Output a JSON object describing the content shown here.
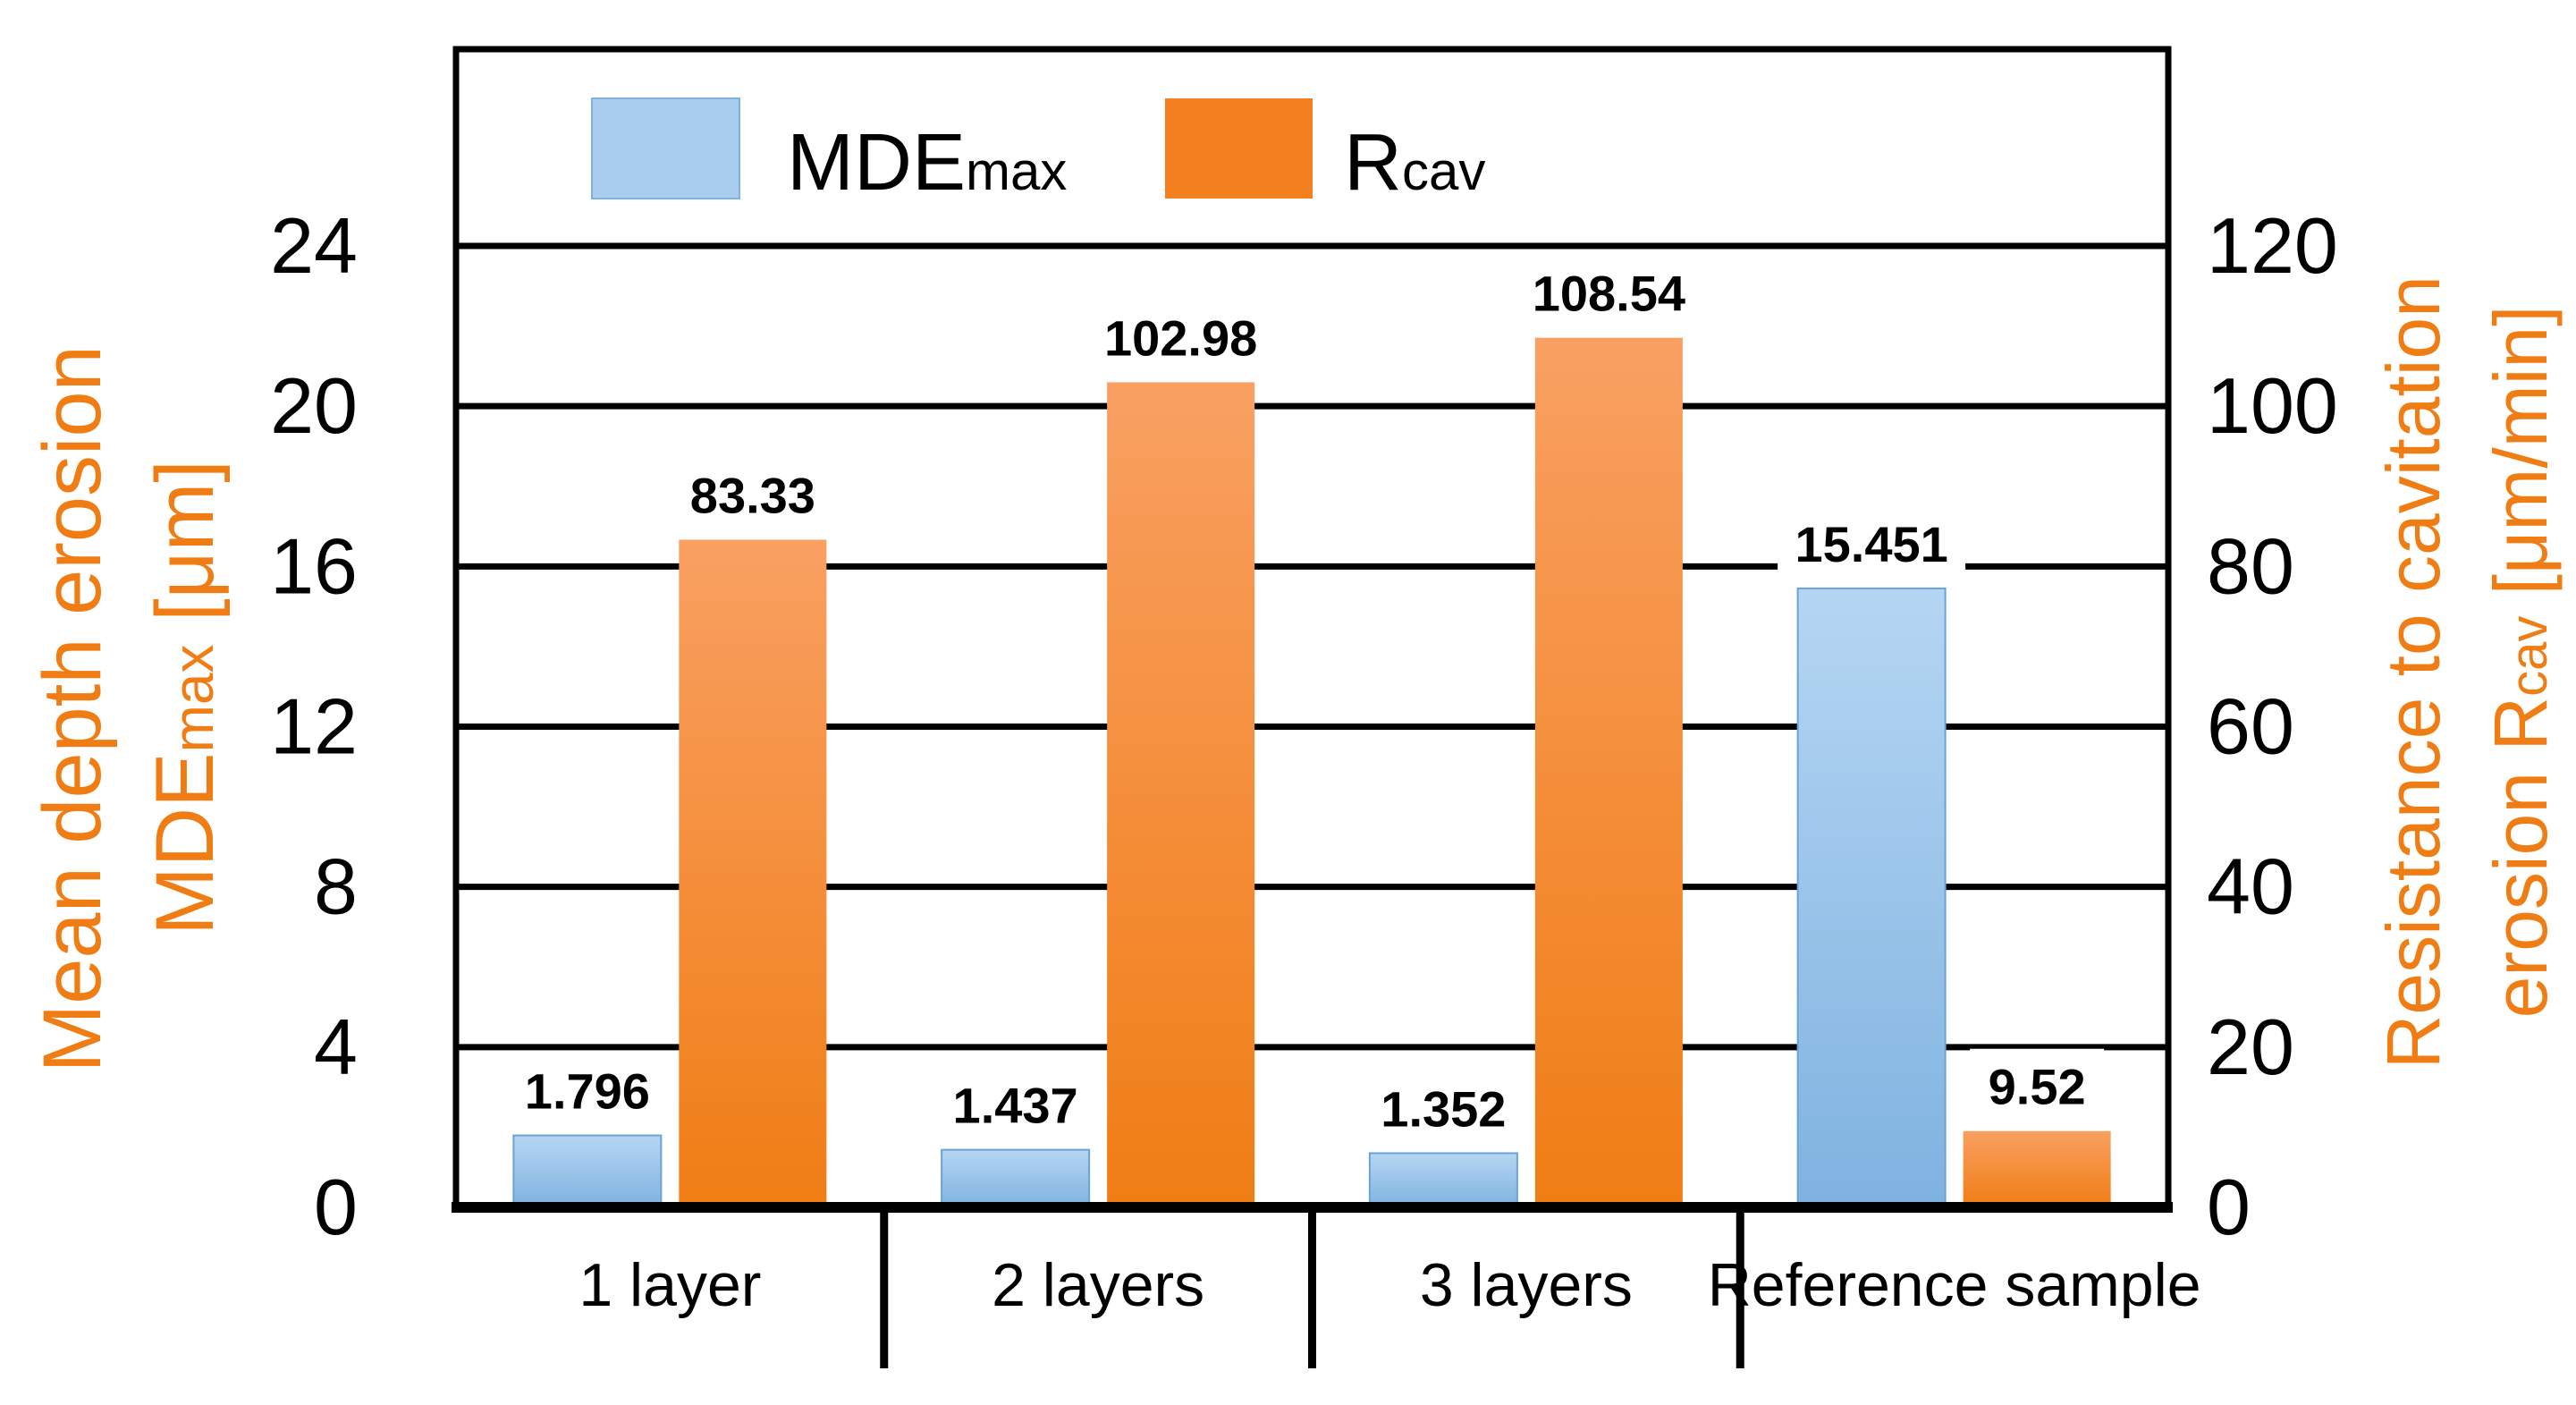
{
  "chart_data": {
    "type": "bar",
    "categories": [
      "1 layer",
      "2 layers",
      "3 layers",
      "Reference sample"
    ],
    "series": [
      {
        "name": "MDE",
        "name_sub": "max",
        "axis": "left",
        "color": "#8fbde6",
        "values": [
          1.796,
          1.437,
          1.352,
          15.451
        ],
        "labels": [
          "1.796",
          "1.437",
          "1.352",
          "15.451"
        ]
      },
      {
        "name": "R",
        "name_sub": "cav",
        "axis": "right",
        "color": "#f5801f",
        "values": [
          83.33,
          102.98,
          108.54,
          9.52
        ],
        "labels": [
          "83.33",
          "102.98",
          "108.54",
          "9.52"
        ]
      }
    ],
    "y_left": {
      "label_line1": "Mean depth erosion",
      "label_line2": "MDE",
      "label_line2_sub": "max",
      "label_line2_tail": " [μm]",
      "ylim": [
        0,
        24
      ],
      "ticks": [
        0,
        4,
        8,
        12,
        16,
        20,
        24
      ]
    },
    "y_right": {
      "label_line1": "Resistance to cavitation",
      "label_line2": "erosion R",
      "label_line2_sub": "cav",
      "label_line2_tail": " [μm/min]",
      "ylim": [
        0,
        120
      ],
      "ticks": [
        0,
        20,
        40,
        60,
        80,
        100,
        120
      ]
    },
    "legend_position": "top-left",
    "grid": true
  },
  "colors": {
    "left_axis_text": "#f07d14",
    "axis_text": "#000000"
  }
}
